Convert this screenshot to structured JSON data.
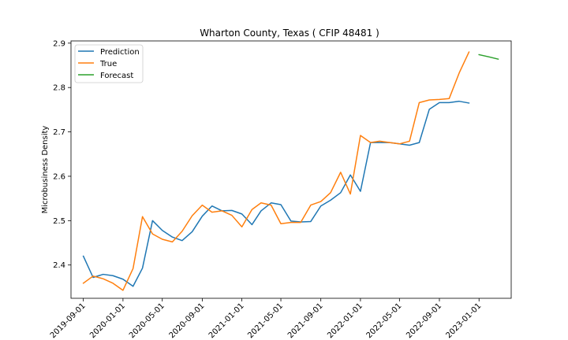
{
  "chart_data": {
    "type": "line",
    "title": "Wharton County, Texas ( CFIP 48481 )",
    "xlabel": "",
    "ylabel": "Microbusiness Density",
    "ylim": [
      2.325,
      2.905
    ],
    "xlim": [
      "2019-07-25",
      "2023-04-10"
    ],
    "x_ticks": [
      "2019-09-01",
      "2020-01-01",
      "2020-05-01",
      "2020-09-01",
      "2021-01-01",
      "2021-05-01",
      "2021-09-01",
      "2022-01-01",
      "2022-05-01",
      "2022-09-01",
      "2023-01-01"
    ],
    "y_ticks": [
      2.4,
      2.5,
      2.6,
      2.7,
      2.8,
      2.9
    ],
    "grid": false,
    "legend_position": "upper-left",
    "series": [
      {
        "name": "Prediction",
        "color": "#1f77b4",
        "x": [
          "2019-09-01",
          "2019-10-01",
          "2019-11-01",
          "2019-12-01",
          "2020-01-01",
          "2020-02-01",
          "2020-03-01",
          "2020-04-01",
          "2020-05-01",
          "2020-06-01",
          "2020-07-01",
          "2020-08-01",
          "2020-09-01",
          "2020-10-01",
          "2020-11-01",
          "2020-12-01",
          "2021-01-01",
          "2021-02-01",
          "2021-03-01",
          "2021-04-01",
          "2021-05-01",
          "2021-06-01",
          "2021-07-01",
          "2021-08-01",
          "2021-09-01",
          "2021-10-01",
          "2021-11-01",
          "2021-12-01",
          "2022-01-01",
          "2022-02-01",
          "2022-03-01",
          "2022-04-01",
          "2022-05-01",
          "2022-06-01",
          "2022-07-01",
          "2022-08-01",
          "2022-09-01",
          "2022-10-01",
          "2022-11-01",
          "2022-12-01"
        ],
        "values": [
          2.42,
          2.372,
          2.379,
          2.376,
          2.368,
          2.352,
          2.393,
          2.5,
          2.478,
          2.463,
          2.455,
          2.475,
          2.51,
          2.533,
          2.522,
          2.523,
          2.515,
          2.491,
          2.522,
          2.54,
          2.536,
          2.499,
          2.497,
          2.498,
          2.533,
          2.546,
          2.563,
          2.603,
          2.566,
          2.676,
          2.676,
          2.676,
          2.673,
          2.67,
          2.676,
          2.751,
          2.766,
          2.766,
          2.769,
          2.765
        ]
      },
      {
        "name": "True",
        "color": "#ff7f0e",
        "x": [
          "2019-09-01",
          "2019-10-01",
          "2019-11-01",
          "2019-12-01",
          "2020-01-01",
          "2020-02-01",
          "2020-03-01",
          "2020-04-01",
          "2020-05-01",
          "2020-06-01",
          "2020-07-01",
          "2020-08-01",
          "2020-09-01",
          "2020-10-01",
          "2020-11-01",
          "2020-12-01",
          "2021-01-01",
          "2021-02-01",
          "2021-03-01",
          "2021-04-01",
          "2021-05-01",
          "2021-06-01",
          "2021-07-01",
          "2021-08-01",
          "2021-09-01",
          "2021-10-01",
          "2021-11-01",
          "2021-12-01",
          "2022-01-01",
          "2022-02-01",
          "2022-03-01",
          "2022-04-01",
          "2022-05-01",
          "2022-06-01",
          "2022-07-01",
          "2022-08-01",
          "2022-09-01",
          "2022-10-01",
          "2022-11-01",
          "2022-12-01"
        ],
        "values": [
          2.359,
          2.375,
          2.369,
          2.359,
          2.343,
          2.392,
          2.509,
          2.47,
          2.458,
          2.452,
          2.476,
          2.511,
          2.535,
          2.519,
          2.522,
          2.512,
          2.486,
          2.525,
          2.54,
          2.535,
          2.493,
          2.496,
          2.496,
          2.535,
          2.543,
          2.563,
          2.609,
          2.56,
          2.692,
          2.676,
          2.679,
          2.676,
          2.673,
          2.679,
          2.766,
          2.772,
          2.773,
          2.775,
          2.833,
          2.88
        ]
      },
      {
        "name": "Forecast",
        "color": "#2ca02c",
        "x": [
          "2023-01-01",
          "2023-02-01",
          "2023-03-01"
        ],
        "values": [
          2.874,
          2.869,
          2.864
        ]
      }
    ]
  }
}
